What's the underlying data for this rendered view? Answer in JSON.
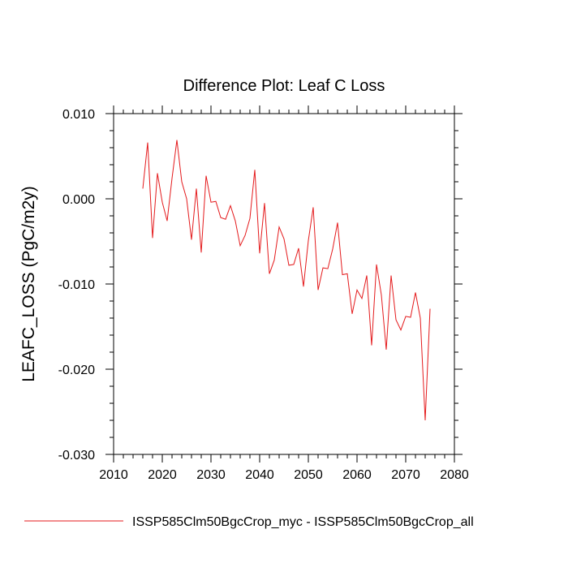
{
  "chart_data": {
    "type": "line",
    "title": "Difference Plot: Leaf C Loss",
    "xlabel": "",
    "ylabel": "LEAFC_LOSS  (PgC/m2y)",
    "xlim": [
      2010,
      2080
    ],
    "ylim": [
      -0.03,
      0.01
    ],
    "x_ticks": [
      2010,
      2020,
      2030,
      2040,
      2050,
      2060,
      2070,
      2080
    ],
    "x_tick_labels": [
      "2010",
      "2020",
      "2030",
      "2040",
      "2050",
      "2060",
      "2070",
      "2080"
    ],
    "y_ticks": [
      -0.03,
      -0.02,
      -0.01,
      0.0,
      0.01
    ],
    "y_tick_labels": [
      "-0.030",
      "-0.020",
      "-0.010",
      "0.000",
      "0.010"
    ],
    "grid": false,
    "legend_position": "bottom-left",
    "series": [
      {
        "name": "ISSP585Clm50BgcCrop_myc - ISSP585Clm50BgcCrop_all",
        "color": "#e41a1c",
        "x": [
          2016,
          2017,
          2018,
          2019,
          2020,
          2021,
          2022,
          2023,
          2024,
          2025,
          2026,
          2027,
          2028,
          2029,
          2030,
          2031,
          2032,
          2033,
          2034,
          2035,
          2036,
          2037,
          2038,
          2039,
          2040,
          2041,
          2042,
          2043,
          2044,
          2045,
          2046,
          2047,
          2048,
          2049,
          2050,
          2051,
          2052,
          2053,
          2054,
          2055,
          2056,
          2057,
          2058,
          2059,
          2060,
          2061,
          2062,
          2063,
          2064,
          2065,
          2066,
          2067,
          2068,
          2069,
          2070,
          2071,
          2072,
          2073,
          2074,
          2075
        ],
        "y": [
          0.0012,
          0.0066,
          -0.0046,
          0.003,
          -0.0004,
          -0.0026,
          0.0024,
          0.0069,
          0.002,
          0.0,
          -0.0048,
          0.0012,
          -0.0063,
          0.0027,
          -0.0004,
          -0.0003,
          -0.0022,
          -0.0024,
          -0.0008,
          -0.0026,
          -0.0055,
          -0.0043,
          -0.0023,
          0.0034,
          -0.0064,
          -0.0005,
          -0.0088,
          -0.0072,
          -0.0033,
          -0.0047,
          -0.0078,
          -0.0077,
          -0.0058,
          -0.0103,
          -0.0049,
          -0.001,
          -0.0107,
          -0.0081,
          -0.0082,
          -0.0059,
          -0.0028,
          -0.0089,
          -0.0088,
          -0.0135,
          -0.0107,
          -0.0117,
          -0.009,
          -0.0172,
          -0.0077,
          -0.0113,
          -0.0177,
          -0.009,
          -0.0142,
          -0.0154,
          -0.0138,
          -0.0139,
          -0.011,
          -0.014,
          -0.026,
          -0.0129
        ]
      }
    ]
  }
}
